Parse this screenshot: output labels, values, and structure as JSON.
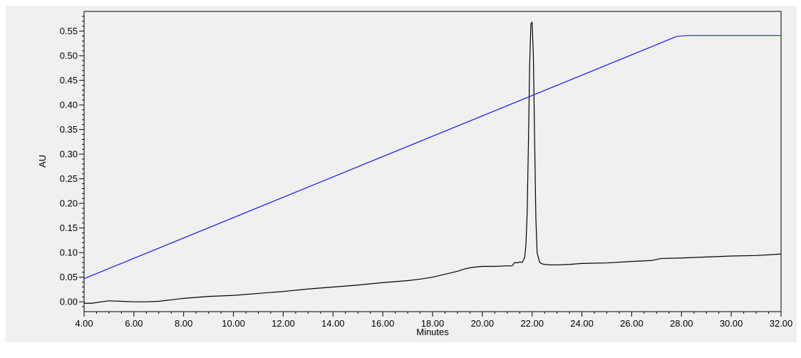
{
  "chart_data": {
    "type": "line",
    "xlabel": "Minutes",
    "ylabel": "AU",
    "xlim": [
      4.0,
      32.0
    ],
    "ylim": [
      -0.02,
      0.59
    ],
    "x_ticks": [
      "4.00",
      "6.00",
      "8.00",
      "10.00",
      "12.00",
      "14.00",
      "16.00",
      "18.00",
      "20.00",
      "22.00",
      "24.00",
      "26.00",
      "28.00",
      "30.00",
      "32.00"
    ],
    "y_ticks": [
      "0.00",
      "0.05",
      "0.10",
      "0.15",
      "0.20",
      "0.25",
      "0.30",
      "0.35",
      "0.40",
      "0.45",
      "0.50",
      "0.55"
    ],
    "grid": false,
    "series": [
      {
        "color": "#000000",
        "x": [
          4.0,
          4.3,
          4.7,
          5.0,
          5.5,
          6.0,
          6.5,
          7.0,
          7.5,
          8.0,
          9.0,
          10.0,
          11.0,
          12.0,
          13.0,
          14.0,
          15.0,
          16.0,
          17.0,
          17.5,
          18.0,
          18.5,
          19.0,
          19.3,
          19.6,
          20.0,
          20.5,
          21.0,
          21.2,
          21.3,
          21.4,
          21.5,
          21.6,
          21.7,
          21.75,
          21.8,
          21.85,
          21.9,
          21.95,
          22.0,
          22.05,
          22.1,
          22.15,
          22.2,
          22.3,
          22.4,
          22.5,
          22.7,
          23.0,
          23.5,
          24.0,
          25.0,
          26.0,
          26.8,
          27.2,
          28.0,
          29.0,
          30.0,
          31.0,
          32.0
        ],
        "y": [
          -0.003,
          -0.003,
          0.0,
          0.002,
          0.001,
          0.0,
          0.0,
          0.001,
          0.004,
          0.007,
          0.011,
          0.013,
          0.017,
          0.021,
          0.026,
          0.03,
          0.034,
          0.039,
          0.043,
          0.046,
          0.05,
          0.056,
          0.062,
          0.067,
          0.07,
          0.072,
          0.072,
          0.073,
          0.073,
          0.08,
          0.079,
          0.081,
          0.08,
          0.09,
          0.115,
          0.18,
          0.32,
          0.48,
          0.565,
          0.568,
          0.5,
          0.33,
          0.17,
          0.1,
          0.08,
          0.077,
          0.076,
          0.075,
          0.075,
          0.076,
          0.078,
          0.079,
          0.082,
          0.084,
          0.088,
          0.089,
          0.091,
          0.093,
          0.094,
          0.097
        ]
      },
      {
        "color": "#1a1aff",
        "x": [
          4.0,
          27.8,
          28.2,
          32.0
        ],
        "y": [
          0.047,
          0.539,
          0.541,
          0.541
        ]
      }
    ]
  }
}
